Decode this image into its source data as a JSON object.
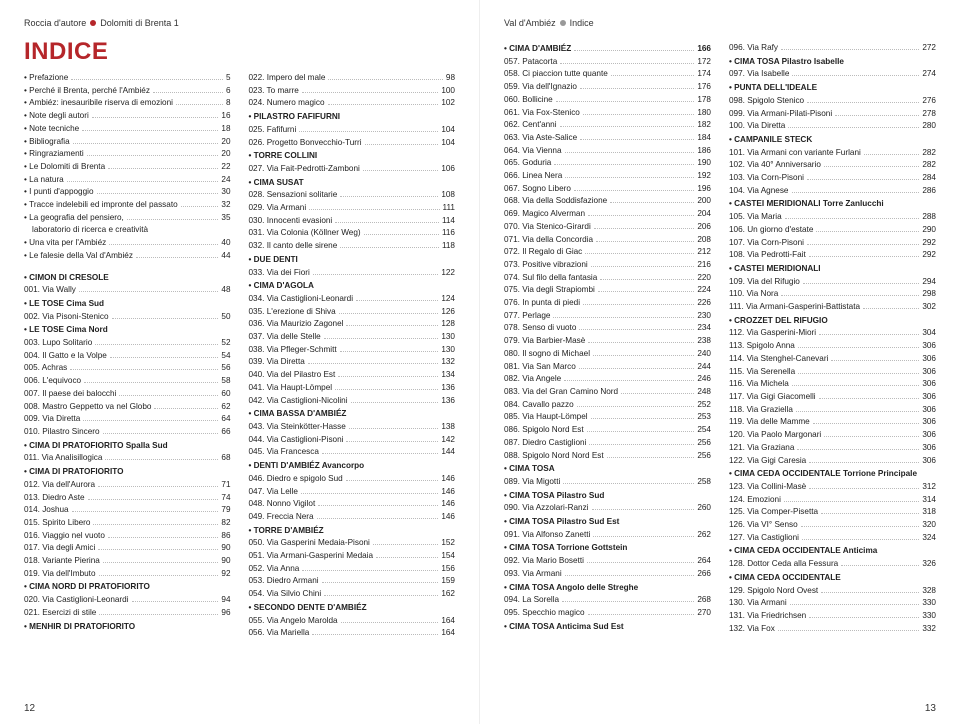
{
  "colors": {
    "accent": "#b5262a",
    "text": "#222",
    "dots": "#bbb",
    "gray_dot": "#999"
  },
  "left": {
    "header": {
      "a": "Roccia d'autore",
      "b": "Dolomiti di Brenta 1"
    },
    "title": "INDICE",
    "page_num": "12",
    "col1": [
      {
        "t": "entry",
        "l": "Prefazione",
        "n": "5",
        "b": "•"
      },
      {
        "t": "entry",
        "l": "Perché il Brenta, perché l'Ambiéz",
        "n": "6",
        "b": "•"
      },
      {
        "t": "entry",
        "l": "Ambiéz: inesauribile riserva di emozioni",
        "n": "8",
        "b": "•"
      },
      {
        "t": "entry",
        "l": "Note degli autori",
        "n": "16",
        "b": "•"
      },
      {
        "t": "entry",
        "l": "Note tecniche",
        "n": "18",
        "b": "•"
      },
      {
        "t": "entry",
        "l": "Bibliografia",
        "n": "20",
        "b": "•"
      },
      {
        "t": "entry",
        "l": "Ringraziamenti",
        "n": "20",
        "b": "•"
      },
      {
        "t": "entry",
        "l": "Le Dolomiti di Brenta",
        "n": "22",
        "b": "•"
      },
      {
        "t": "entry",
        "l": "La natura",
        "n": "24",
        "b": "•"
      },
      {
        "t": "entry",
        "l": "I punti d'appoggio",
        "n": "30",
        "b": "•"
      },
      {
        "t": "entry",
        "l": "Tracce indelebili ed impronte del passato",
        "n": "32",
        "b": "•"
      },
      {
        "t": "entry",
        "l": "La geografia del pensiero,",
        "n": "35",
        "b": "•"
      },
      {
        "t": "plain",
        "l": "laboratorio di ricerca e creatività"
      },
      {
        "t": "entry",
        "l": "Una vita per l'Ambiéz",
        "n": "40",
        "b": "•"
      },
      {
        "t": "entry",
        "l": "Le falesie della Val d'Ambiéz",
        "n": "44",
        "b": "•"
      },
      {
        "t": "blank"
      },
      {
        "t": "section",
        "l": "CIMON DI CRESOLE",
        "b": "•"
      },
      {
        "t": "entry",
        "l": "001. Via Wally",
        "n": "48"
      },
      {
        "t": "section",
        "l": "LE TOSE Cima Sud",
        "b": "•"
      },
      {
        "t": "entry",
        "l": "002. Via Pisoni-Stenico",
        "n": "50"
      },
      {
        "t": "section",
        "l": "LE TOSE Cima Nord",
        "b": "•"
      },
      {
        "t": "entry",
        "l": "003. Lupo Solitario",
        "n": "52"
      },
      {
        "t": "entry",
        "l": "004. Il Gatto e la Volpe",
        "n": "54"
      },
      {
        "t": "entry",
        "l": "005. Achras",
        "n": "56"
      },
      {
        "t": "entry",
        "l": "006. L'equivoco",
        "n": "58"
      },
      {
        "t": "entry",
        "l": "007. Il paese dei balocchi",
        "n": "60"
      },
      {
        "t": "entry",
        "l": "008. Mastro Geppetto va nel Globo",
        "n": "62"
      },
      {
        "t": "entry",
        "l": "009. Via Diretta",
        "n": "64"
      },
      {
        "t": "entry",
        "l": "010. Pilastro Sincero",
        "n": "66"
      },
      {
        "t": "section",
        "l": "CIMA DI PRATOFIORITO Spalla Sud",
        "b": "•"
      },
      {
        "t": "entry",
        "l": "011. Via Analisillogica",
        "n": "68"
      },
      {
        "t": "section",
        "l": "CIMA DI PRATOFIORITO",
        "b": "•"
      },
      {
        "t": "entry",
        "l": "012. Via dell'Aurora",
        "n": "71"
      },
      {
        "t": "entry",
        "l": "013. Diedro Aste",
        "n": "74"
      },
      {
        "t": "entry",
        "l": "014. Joshua",
        "n": "79"
      },
      {
        "t": "entry",
        "l": "015. Spirito Libero",
        "n": "82"
      },
      {
        "t": "entry",
        "l": "016. Viaggio nel vuoto",
        "n": "86"
      },
      {
        "t": "entry",
        "l": "017. Via degli Amici",
        "n": "90"
      },
      {
        "t": "entry",
        "l": "018. Variante Pierina",
        "n": "90"
      },
      {
        "t": "entry",
        "l": "019. Via dell'Imbuto",
        "n": "92"
      },
      {
        "t": "section",
        "l": "CIMA NORD DI PRATOFIORITO",
        "b": "•"
      },
      {
        "t": "entry",
        "l": "020. Via Castiglioni-Leonardi",
        "n": "94"
      },
      {
        "t": "entry",
        "l": "021. Esercizi di stile",
        "n": "96"
      },
      {
        "t": "section",
        "l": "MENHIR DI PRATOFIORITO",
        "b": "•"
      }
    ],
    "col2": [
      {
        "t": "entry",
        "l": "022. Impero del male",
        "n": "98"
      },
      {
        "t": "entry",
        "l": "023. To marre",
        "n": "100"
      },
      {
        "t": "entry",
        "l": "024. Numero magico",
        "n": "102"
      },
      {
        "t": "section",
        "l": "PILASTRO FAFIFURNI",
        "b": "•"
      },
      {
        "t": "entry",
        "l": "025. Fafifurni",
        "n": "104"
      },
      {
        "t": "entry",
        "l": "026. Progetto Bonvecchio-Turri",
        "n": "104"
      },
      {
        "t": "section",
        "l": "TORRE COLLINI",
        "b": "•"
      },
      {
        "t": "entry",
        "l": "027. Via Fait-Pedrotti-Zamboni",
        "n": "106"
      },
      {
        "t": "section",
        "l": "CIMA SUSAT",
        "b": "•"
      },
      {
        "t": "entry",
        "l": "028. Sensazioni solitarie",
        "n": "108"
      },
      {
        "t": "entry",
        "l": "029. Via Armani",
        "n": "111"
      },
      {
        "t": "entry",
        "l": "030. Innocenti evasioni",
        "n": "114"
      },
      {
        "t": "entry",
        "l": "031. Via Colonia (Köllner Weg)",
        "n": "116"
      },
      {
        "t": "entry",
        "l": "032. Il canto delle sirene",
        "n": "118"
      },
      {
        "t": "section",
        "l": "DUE DENTI",
        "b": "•"
      },
      {
        "t": "entry",
        "l": "033. Via dei Fiori",
        "n": "122"
      },
      {
        "t": "section",
        "l": "CIMA D'AGOLA",
        "b": "•"
      },
      {
        "t": "entry",
        "l": "034. Via Castiglioni-Leonardi",
        "n": "124"
      },
      {
        "t": "entry",
        "l": "035. L'erezione di Shiva",
        "n": "126"
      },
      {
        "t": "entry",
        "l": "036. Via Maurizio Zagonel",
        "n": "128"
      },
      {
        "t": "entry",
        "l": "037. Via delle Stelle",
        "n": "130"
      },
      {
        "t": "entry",
        "l": "038. Via Pfleger-Schmitt",
        "n": "130"
      },
      {
        "t": "entry",
        "l": "039. Via Diretta",
        "n": "132"
      },
      {
        "t": "entry",
        "l": "040. Via del Pilastro Est",
        "n": "134"
      },
      {
        "t": "entry",
        "l": "041. Via Haupt-Lömpel",
        "n": "136"
      },
      {
        "t": "entry",
        "l": "042. Via Castiglioni-Nicolini",
        "n": "136"
      },
      {
        "t": "section",
        "l": "CIMA BASSA D'AMBIÉZ",
        "b": "•"
      },
      {
        "t": "entry",
        "l": "043. Via Steinkötter-Hasse",
        "n": "138"
      },
      {
        "t": "entry",
        "l": "044. Via Castiglioni-Pisoni",
        "n": "142"
      },
      {
        "t": "entry",
        "l": "045. Via Francesca",
        "n": "144"
      },
      {
        "t": "section",
        "l": "DENTI D'AMBIÉZ Avancorpo",
        "b": "•"
      },
      {
        "t": "entry",
        "l": "046. Diedro e spigolo Sud",
        "n": "146"
      },
      {
        "t": "entry",
        "l": "047. Via Lelle",
        "n": "146"
      },
      {
        "t": "entry",
        "l": "048. Nonno Vigilot",
        "n": "146"
      },
      {
        "t": "entry",
        "l": "049. Freccia Nera",
        "n": "146"
      },
      {
        "t": "section",
        "l": "TORRE D'AMBIÉZ",
        "b": "•"
      },
      {
        "t": "entry",
        "l": "050. Via Gasperini Medaia-Pisoni",
        "n": "152"
      },
      {
        "t": "entry",
        "l": "051. Via Armani-Gasperini Medaia",
        "n": "154"
      },
      {
        "t": "entry",
        "l": "052. Via Anna",
        "n": "156"
      },
      {
        "t": "entry",
        "l": "053. Diedro Armani",
        "n": "159"
      },
      {
        "t": "entry",
        "l": "054. Via Silvio Chini",
        "n": "162"
      },
      {
        "t": "section",
        "l": "SECONDO DENTE D'AMBIÉZ",
        "b": "•"
      },
      {
        "t": "entry",
        "l": "055. Via Angelo Marolda",
        "n": "164"
      },
      {
        "t": "entry",
        "l": "056. Via Mariella",
        "n": "164"
      }
    ]
  },
  "right": {
    "header": {
      "a": "Val d'Ambiéz",
      "b": "Indice"
    },
    "page_num": "13",
    "col1": [
      {
        "t": "section-entry",
        "l": "CIMA D'AMBIÉZ",
        "n": "166",
        "b": "•"
      },
      {
        "t": "entry",
        "l": "057. Patacorta",
        "n": "172"
      },
      {
        "t": "entry",
        "l": "058. Ci piaccion tutte quante",
        "n": "174"
      },
      {
        "t": "entry",
        "l": "059. Via dell'Ignazio",
        "n": "176"
      },
      {
        "t": "entry",
        "l": "060. Bollicine",
        "n": "178"
      },
      {
        "t": "entry",
        "l": "061. Via Fox-Stenico",
        "n": "180"
      },
      {
        "t": "entry",
        "l": "062. Cent'anni",
        "n": "182"
      },
      {
        "t": "entry",
        "l": "063. Via Aste-Salice",
        "n": "184"
      },
      {
        "t": "entry",
        "l": "064. Via Vienna",
        "n": "186"
      },
      {
        "t": "entry",
        "l": "065. Goduria",
        "n": "190"
      },
      {
        "t": "entry",
        "l": "066. Linea Nera",
        "n": "192"
      },
      {
        "t": "entry",
        "l": "067. Sogno Libero",
        "n": "196"
      },
      {
        "t": "entry",
        "l": "068. Via della Soddisfazione",
        "n": "200"
      },
      {
        "t": "entry",
        "l": "069. Magico Alverman",
        "n": "204"
      },
      {
        "t": "entry",
        "l": "070. Via Stenico-Girardi",
        "n": "206"
      },
      {
        "t": "entry",
        "l": "071. Via della Concordia",
        "n": "208"
      },
      {
        "t": "entry",
        "l": "072. Il Regalo di Giac",
        "n": "212"
      },
      {
        "t": "entry",
        "l": "073. Positive vibrazioni",
        "n": "216"
      },
      {
        "t": "entry",
        "l": "074. Sul filo della fantasia",
        "n": "220"
      },
      {
        "t": "entry",
        "l": "075. Via degli Strapiombi",
        "n": "224"
      },
      {
        "t": "entry",
        "l": "076. In punta di piedi",
        "n": "226"
      },
      {
        "t": "entry",
        "l": "077. Perlage",
        "n": "230"
      },
      {
        "t": "entry",
        "l": "078. Senso di vuoto",
        "n": "234"
      },
      {
        "t": "entry",
        "l": "079. Via Barbier-Masè",
        "n": "238"
      },
      {
        "t": "entry",
        "l": "080. Il sogno di Michael",
        "n": "240"
      },
      {
        "t": "entry",
        "l": "081. Via San Marco",
        "n": "244"
      },
      {
        "t": "entry",
        "l": "082. Via Angele",
        "n": "246"
      },
      {
        "t": "entry",
        "l": "083. Via del Gran Camino Nord",
        "n": "248"
      },
      {
        "t": "entry",
        "l": "084. Cavallo pazzo",
        "n": "252"
      },
      {
        "t": "entry",
        "l": "085. Via Haupt-Lömpel",
        "n": "253"
      },
      {
        "t": "entry",
        "l": "086. Spigolo Nord Est",
        "n": "254"
      },
      {
        "t": "entry",
        "l": "087. Diedro Castiglioni",
        "n": "256"
      },
      {
        "t": "entry",
        "l": "088. Spigolo Nord Nord Est",
        "n": "256"
      },
      {
        "t": "section",
        "l": "CIMA TOSA",
        "b": "•"
      },
      {
        "t": "entry",
        "l": "089. Via Migotti",
        "n": "258"
      },
      {
        "t": "section",
        "l": "CIMA TOSA Pilastro Sud",
        "b": "•"
      },
      {
        "t": "entry",
        "l": "090. Via Azzolari-Ranzi",
        "n": "260"
      },
      {
        "t": "section",
        "l": "CIMA TOSA Pilastro Sud Est",
        "b": "•"
      },
      {
        "t": "entry",
        "l": "091. Via Alfonso Zanetti",
        "n": "262"
      },
      {
        "t": "section",
        "l": "CIMA TOSA Torrione Gottstein",
        "b": "•"
      },
      {
        "t": "entry",
        "l": "092. Via Mario Bosetti",
        "n": "264"
      },
      {
        "t": "entry",
        "l": "093. Via Armani",
        "n": "266"
      },
      {
        "t": "section",
        "l": "CIMA TOSA Angolo delle Streghe",
        "b": "•"
      },
      {
        "t": "entry",
        "l": "094. La Sorella",
        "n": "268"
      },
      {
        "t": "entry",
        "l": "095. Specchio magico",
        "n": "270"
      },
      {
        "t": "section",
        "l": "CIMA TOSA Anticima Sud Est",
        "b": "•"
      }
    ],
    "col2": [
      {
        "t": "entry",
        "l": "096. Via Rafy",
        "n": "272"
      },
      {
        "t": "section",
        "l": "CIMA TOSA Pilastro Isabelle",
        "b": "•"
      },
      {
        "t": "entry",
        "l": "097. Via Isabelle",
        "n": "274"
      },
      {
        "t": "section",
        "l": "PUNTA DELL'IDEALE",
        "b": "•"
      },
      {
        "t": "entry",
        "l": "098. Spigolo Stenico",
        "n": "276"
      },
      {
        "t": "entry",
        "l": "099. Via Armani-Pilati-Pisoni",
        "n": "278"
      },
      {
        "t": "entry",
        "l": "100. Via Diretta",
        "n": "280"
      },
      {
        "t": "section",
        "l": "CAMPANILE STECK",
        "b": "•"
      },
      {
        "t": "entry",
        "l": "101. Via Armani con variante Furlani",
        "n": "282"
      },
      {
        "t": "entry",
        "l": "102. Via 40° Anniversario",
        "n": "282"
      },
      {
        "t": "entry",
        "l": "103. Via Corn-Pisoni",
        "n": "284"
      },
      {
        "t": "entry",
        "l": "104. Via Agnese",
        "n": "286"
      },
      {
        "t": "section",
        "l": "CASTEI MERIDIONALI Torre Zanlucchi",
        "b": "•"
      },
      {
        "t": "entry",
        "l": "105. Via Maria",
        "n": "288"
      },
      {
        "t": "entry",
        "l": "106. Un giorno d'estate",
        "n": "290"
      },
      {
        "t": "entry",
        "l": "107. Via Corn-Pisoni",
        "n": "292"
      },
      {
        "t": "entry",
        "l": "108. Via Pedrotti-Fait",
        "n": "292"
      },
      {
        "t": "section",
        "l": "CASTEI MERIDIONALI",
        "b": "•"
      },
      {
        "t": "entry",
        "l": "109. Via del Rifugio",
        "n": "294"
      },
      {
        "t": "entry",
        "l": "110. Via Nora",
        "n": "298"
      },
      {
        "t": "entry",
        "l": "111. Via Armani-Gasperini-Battistata",
        "n": "302"
      },
      {
        "t": "section",
        "l": "CROZZET DEL RIFUGIO",
        "b": "•"
      },
      {
        "t": "entry",
        "l": "112. Via Gasperini-Miori",
        "n": "304"
      },
      {
        "t": "entry",
        "l": "113. Spigolo Anna",
        "n": "306"
      },
      {
        "t": "entry",
        "l": "114. Via Stenghel-Canevari",
        "n": "306"
      },
      {
        "t": "entry",
        "l": "115. Via Serenella",
        "n": "306"
      },
      {
        "t": "entry",
        "l": "116. Via Michela",
        "n": "306"
      },
      {
        "t": "entry",
        "l": "117. Via Gigi Giacomelli",
        "n": "306"
      },
      {
        "t": "entry",
        "l": "118. Via Graziella",
        "n": "306"
      },
      {
        "t": "entry",
        "l": "119. Via delle Mamme",
        "n": "306"
      },
      {
        "t": "entry",
        "l": "120. Via Paolo Margonari",
        "n": "306"
      },
      {
        "t": "entry",
        "l": "121. Via Graziana",
        "n": "306"
      },
      {
        "t": "entry",
        "l": "122. Via Gigi Caresia",
        "n": "306"
      },
      {
        "t": "section",
        "l": "CIMA CEDA OCCIDENTALE Torrione Principale",
        "b": "•"
      },
      {
        "t": "entry",
        "l": "123. Via Collini-Masè",
        "n": "312"
      },
      {
        "t": "entry",
        "l": "124. Emozioni",
        "n": "314"
      },
      {
        "t": "entry",
        "l": "125. Via Comper-Pisetta",
        "n": "318"
      },
      {
        "t": "entry",
        "l": "126. Via VI° Senso",
        "n": "320"
      },
      {
        "t": "entry",
        "l": "127. Via Castiglioni",
        "n": "324"
      },
      {
        "t": "section",
        "l": "CIMA CEDA OCCIDENTALE Anticima",
        "b": "•"
      },
      {
        "t": "entry",
        "l": "128. Dottor Ceda alla Fessura",
        "n": "326"
      },
      {
        "t": "section",
        "l": "CIMA CEDA OCCIDENTALE",
        "b": "•"
      },
      {
        "t": "entry",
        "l": "129. Spigolo Nord Ovest",
        "n": "328"
      },
      {
        "t": "entry",
        "l": "130. Via Armani",
        "n": "330"
      },
      {
        "t": "entry",
        "l": "131. Via Friedrichsen",
        "n": "330"
      },
      {
        "t": "entry",
        "l": "132. Via Fox",
        "n": "332"
      }
    ]
  }
}
